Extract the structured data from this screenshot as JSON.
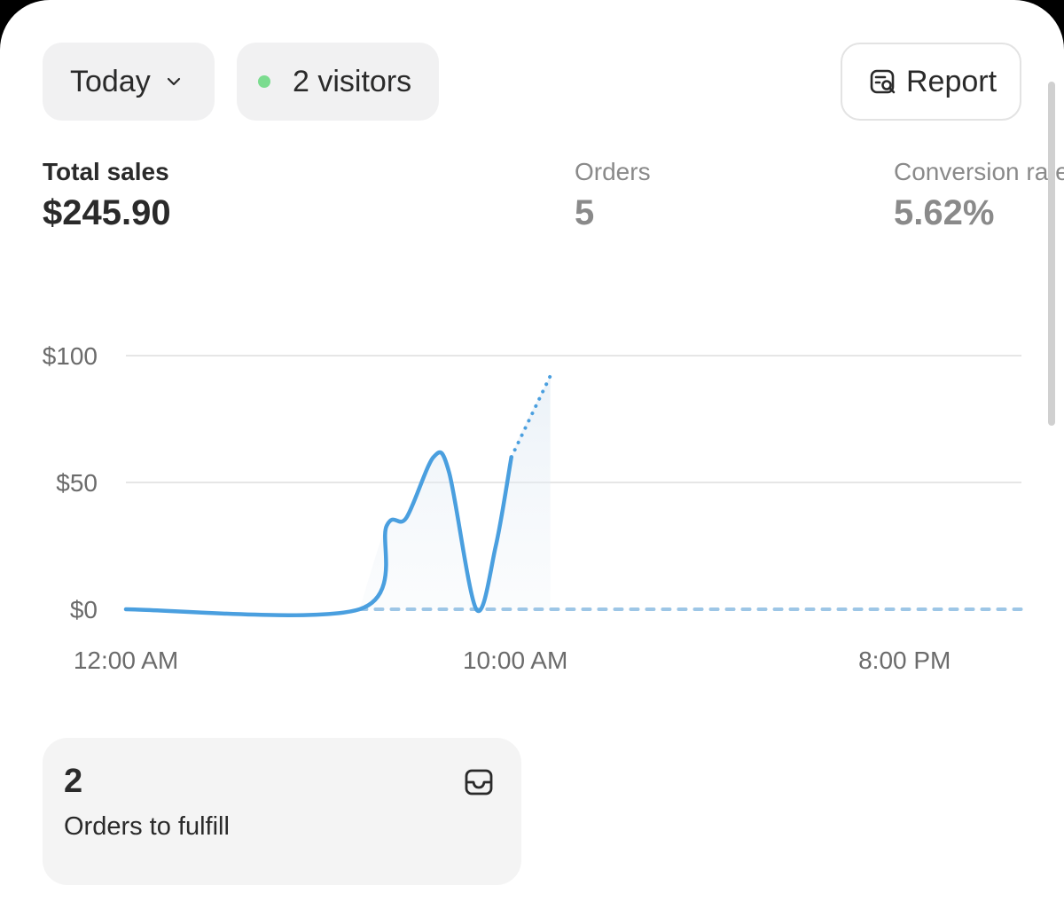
{
  "toolbar": {
    "date_filter": "Today",
    "visitors_label": "2 visitors",
    "live_dot_color": "#7bdc8f",
    "report_label": "Report"
  },
  "metrics": [
    {
      "label": "Total sales",
      "value": "$245.90"
    },
    {
      "label": "Orders",
      "value": "5"
    },
    {
      "label": "Conversion rate",
      "value": "5.62%"
    }
  ],
  "chart_data": {
    "type": "line",
    "title": "Total sales",
    "xlabel": "",
    "ylabel": "",
    "x_range_hours": [
      0,
      23
    ],
    "ylim": [
      0,
      100
    ],
    "y_ticks": [
      {
        "value": 0,
        "label": "$0"
      },
      {
        "value": 50,
        "label": "$50"
      },
      {
        "value": 100,
        "label": "$100"
      }
    ],
    "x_ticks": [
      {
        "hour": 0,
        "label": "12:00 AM"
      },
      {
        "hour": 10,
        "label": "10:00 AM"
      },
      {
        "hour": 20,
        "label": "8:00 PM"
      }
    ],
    "series": [
      {
        "name": "Today",
        "style": "solid",
        "color": "#4a9fdf",
        "points": [
          [
            0,
            0
          ],
          [
            6,
            0
          ],
          [
            6.7,
            33
          ],
          [
            7.2,
            36
          ],
          [
            7.9,
            60
          ],
          [
            8.3,
            54
          ],
          [
            9.0,
            0
          ],
          [
            9.5,
            25
          ],
          [
            9.9,
            60
          ]
        ]
      },
      {
        "name": "Today (in progress)",
        "style": "dotted",
        "color": "#4a9fdf",
        "points": [
          [
            9.9,
            60
          ],
          [
            10.9,
            92
          ]
        ]
      },
      {
        "name": "Comparison",
        "style": "dashed",
        "color": "#9dc6e6",
        "points": [
          [
            6,
            0
          ],
          [
            23,
            0
          ]
        ]
      }
    ]
  },
  "fulfill": {
    "count": "2",
    "label": "Orders to fulfill"
  }
}
